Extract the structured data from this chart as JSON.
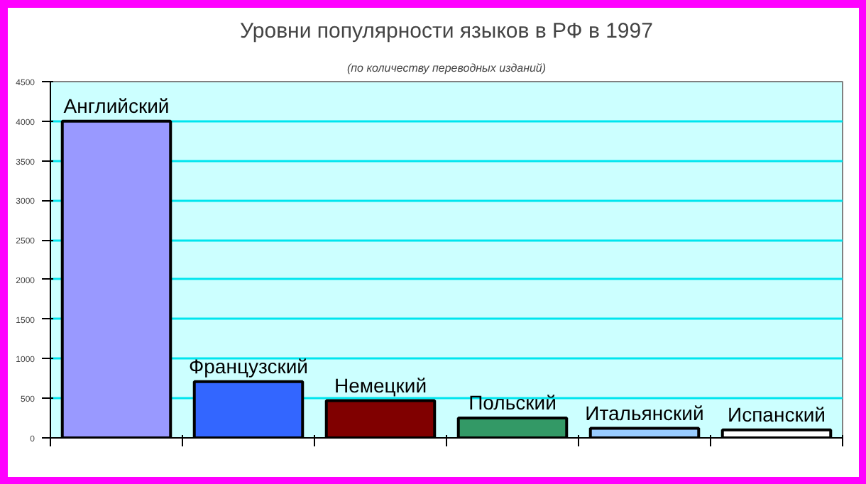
{
  "chart_data": {
    "type": "bar",
    "title": "Уровни популярности языков в РФ в 1997",
    "subtitle": "(по количеству переводных изданий)",
    "categories": [
      "Английский",
      "Французский",
      "Немецкий",
      "Польский",
      "Итальянский",
      "Испанский"
    ],
    "values": [
      4000,
      710,
      470,
      250,
      120,
      100
    ],
    "colors": [
      "#9999ff",
      "#3366ff",
      "#800000",
      "#339966",
      "#99ccff",
      "#ffffff"
    ],
    "ylim": [
      0,
      4500
    ],
    "yticks": [
      0,
      500,
      1000,
      1500,
      2000,
      2500,
      3000,
      3500,
      4000,
      4500
    ],
    "grid": "y",
    "tick_labels": "y"
  }
}
